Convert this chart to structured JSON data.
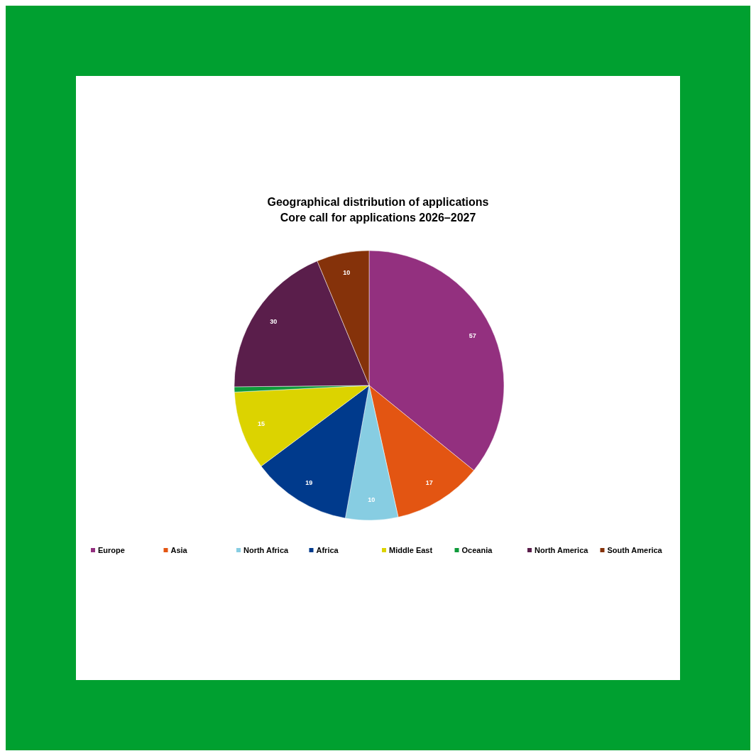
{
  "chart_data": {
    "type": "pie",
    "title": "Geographical distribution of applications",
    "subtitle": "Core call for applications 2026–2027",
    "categories": [
      "Europe",
      "Asia",
      "North Africa",
      "Africa",
      "Middle East",
      "Oceania",
      "North America",
      "South America"
    ],
    "values": [
      57,
      17,
      10,
      19,
      15,
      1,
      30,
      10
    ],
    "value_labels": [
      "57",
      "17",
      "10",
      "19",
      "15",
      null,
      "30",
      "10"
    ],
    "colors": [
      "#93307f",
      "#e35512",
      "#87cde2",
      "#003a8c",
      "#dcd300",
      "#0f9a3a",
      "#5a1e4b",
      "#85320a"
    ],
    "legend": "bottom"
  }
}
